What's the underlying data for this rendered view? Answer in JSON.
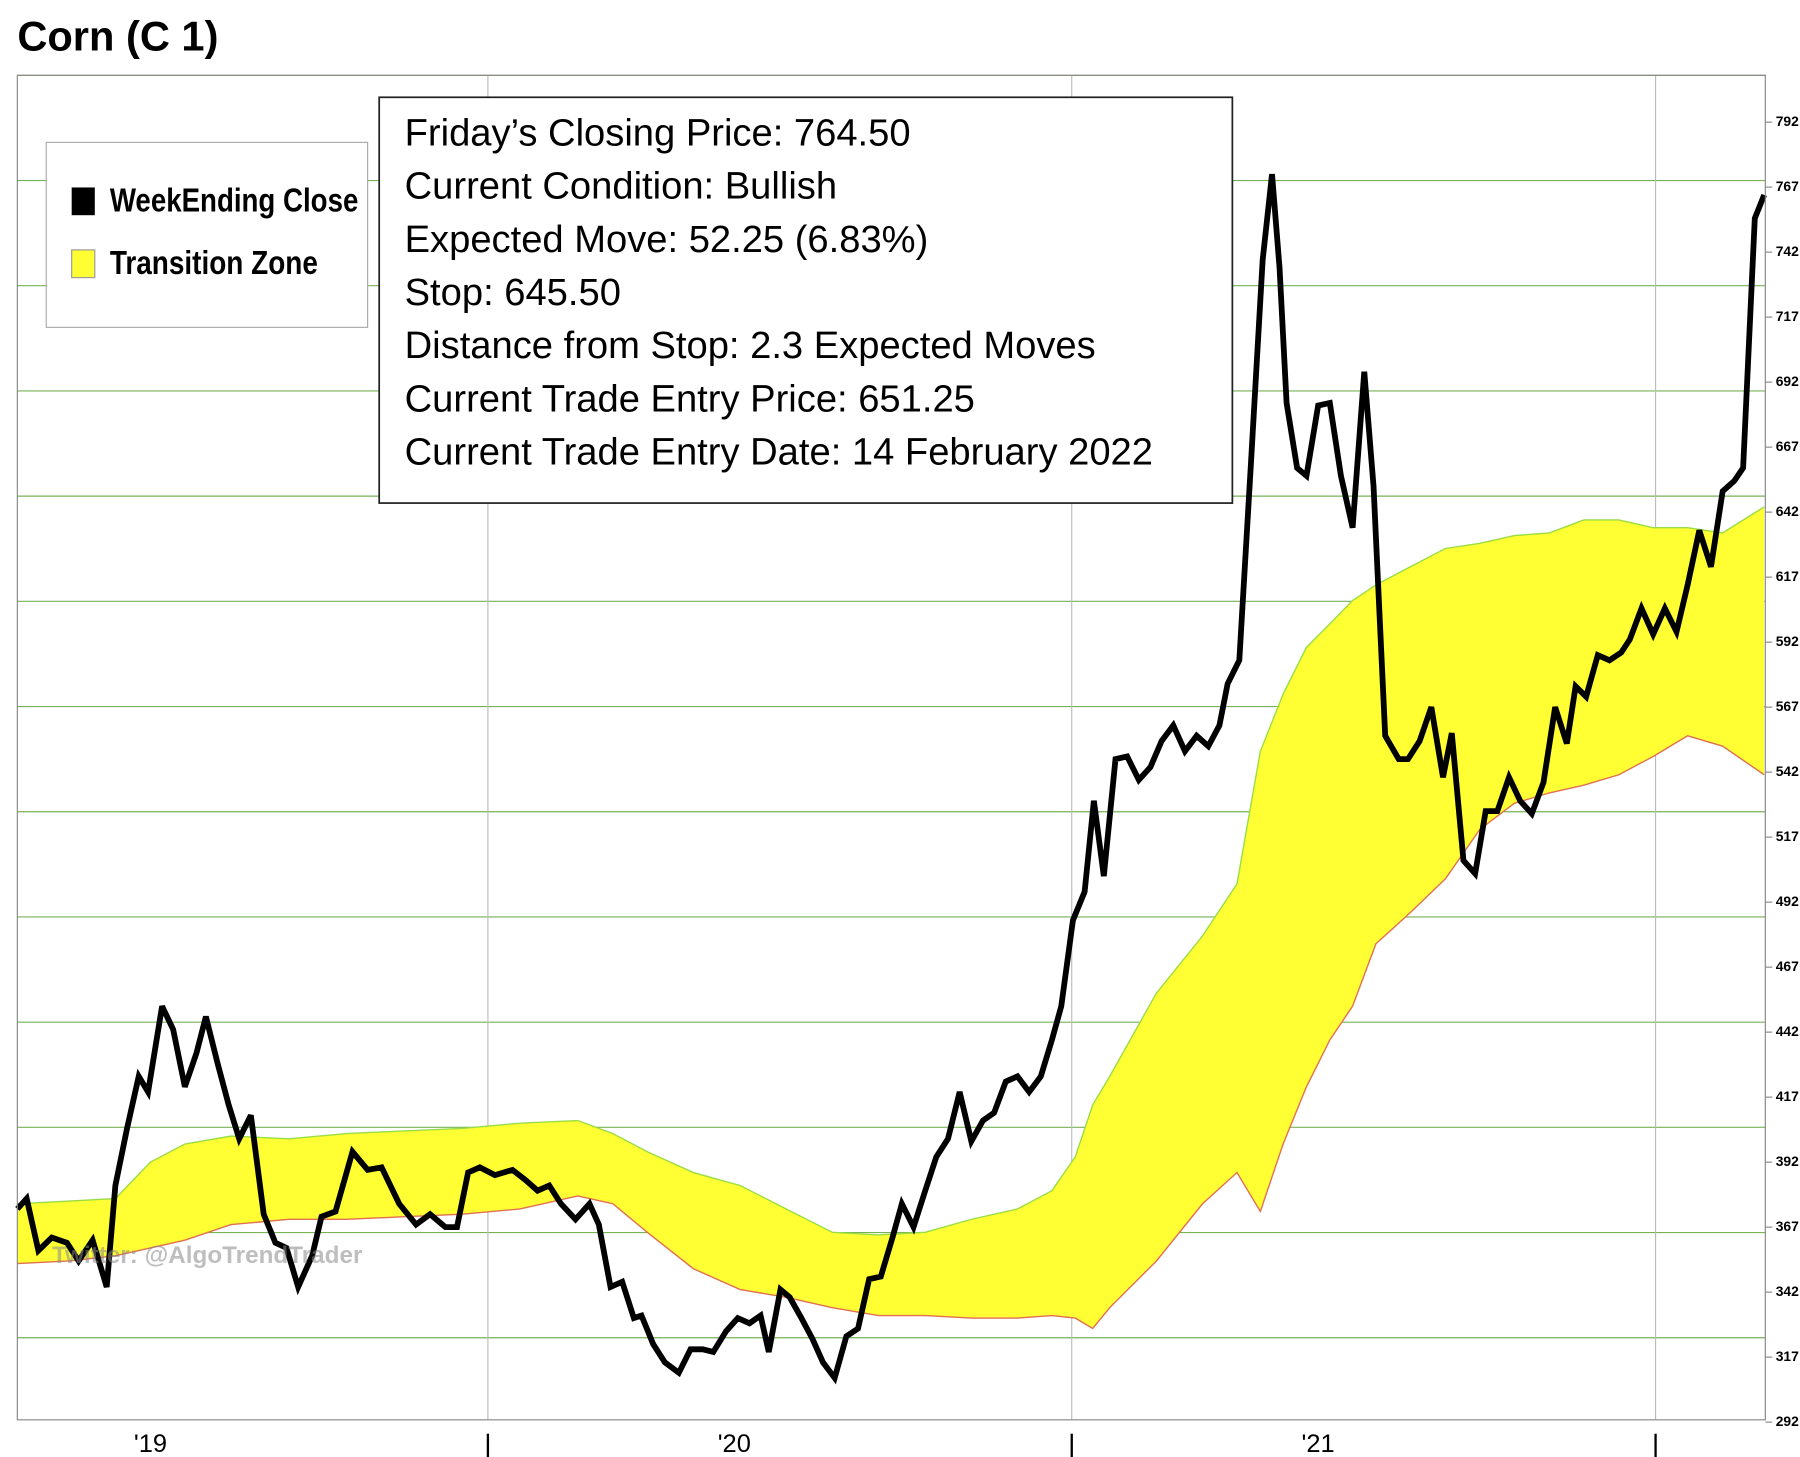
{
  "chart_data": {
    "type": "line",
    "title": "Corn (C 1)",
    "annotations": [
      "Friday’s Closing Price: 764.50",
      "Current Condition: Bullish",
      "Expected Move: 52.25 (6.83%)",
      "Stop: 645.50",
      "Distance from Stop: 2.3 Expected Moves",
      "Current Trade Entry Price: 651.25",
      "Current Trade Entry Date: 14 February 2022"
    ],
    "watermark": "Twitter: @AlgoTrendTrader",
    "legend": "upper left",
    "xlim": [
      2019.194,
      2022.186
    ],
    "xticks": [
      {
        "value": 2019.422,
        "label": "'19"
      },
      {
        "value": 2020.422,
        "label": "'20"
      },
      {
        "value": 2021.422,
        "label": "'21"
      }
    ],
    "xgrid": [
      2020,
      2021,
      2022
    ],
    "ylim": [
      292,
      810
    ],
    "yticks": [
      292,
      317,
      342,
      367,
      392,
      417,
      442,
      467,
      492,
      517,
      542,
      567,
      592,
      617,
      642,
      667,
      692,
      717,
      742,
      767,
      792
    ],
    "series": [
      {
        "name": "WeekEnding Close",
        "color": "#000000",
        "x": [
          2019.194,
          2019.21,
          2019.23,
          2019.253,
          2019.279,
          2019.299,
          2019.323,
          2019.347,
          2019.362,
          2019.382,
          2019.402,
          2019.418,
          2019.442,
          2019.461,
          2019.481,
          2019.501,
          2019.517,
          2019.537,
          2019.556,
          2019.574,
          2019.594,
          2019.616,
          2019.636,
          2019.655,
          2019.675,
          2019.699,
          2019.715,
          2019.739,
          2019.768,
          2019.794,
          2019.818,
          2019.848,
          2019.877,
          2019.901,
          2019.927,
          2019.947,
          2019.966,
          2019.986,
          2020.012,
          2020.042,
          2020.065,
          2020.085,
          2020.105,
          2020.125,
          2020.15,
          2020.174,
          2020.19,
          2020.21,
          2020.23,
          2020.25,
          2020.263,
          2020.283,
          2020.303,
          2020.327,
          2020.347,
          2020.368,
          2020.386,
          2020.408,
          2020.428,
          2020.448,
          2020.467,
          2020.481,
          2020.501,
          2020.517,
          2020.537,
          2020.556,
          2020.574,
          2020.594,
          2020.614,
          2020.634,
          2020.653,
          2020.673,
          2020.693,
          2020.709,
          2020.729,
          2020.749,
          2020.768,
          2020.788,
          2020.808,
          2020.828,
          2020.848,
          2020.867,
          2020.887,
          2020.907,
          2020.927,
          2020.947,
          2020.966,
          2020.982,
          2021.002,
          2021.022,
          2021.038,
          2021.055,
          2021.075,
          2021.095,
          2021.115,
          2021.135,
          2021.154,
          2021.174,
          2021.194,
          2021.214,
          2021.234,
          2021.253,
          2021.267,
          2021.287,
          2021.307,
          2021.327,
          2021.343,
          2021.356,
          2021.368,
          2021.386,
          2021.402,
          2021.422,
          2021.442,
          2021.461,
          2021.481,
          2021.501,
          2021.517,
          2021.537,
          2021.56,
          2021.576,
          2021.596,
          2021.616,
          2021.636,
          2021.651,
          2021.671,
          2021.691,
          2021.709,
          2021.729,
          2021.749,
          2021.768,
          2021.788,
          2021.808,
          2021.828,
          2021.848,
          2021.863,
          2021.881,
          2021.901,
          2021.921,
          2021.941,
          2021.956,
          2021.976,
          2021.996,
          2022.016,
          2022.036,
          2022.055,
          2022.075,
          2022.095,
          2022.115,
          2022.135,
          2022.15,
          2022.17,
          2022.186
        ],
        "values": [
          374,
          378,
          358,
          363,
          361,
          354,
          362,
          344,
          383,
          405,
          425,
          419,
          452,
          443,
          421,
          434,
          448,
          430,
          414,
          401,
          410,
          372,
          361,
          359,
          344,
          356,
          371,
          373,
          396,
          389,
          390,
          376,
          368,
          372,
          367,
          367,
          388,
          390,
          387,
          389,
          385,
          381,
          383,
          376,
          370,
          376,
          368,
          344,
          346,
          332,
          333,
          322,
          315,
          311,
          320,
          320,
          319,
          327,
          332,
          330,
          333,
          319,
          343,
          340,
          332,
          324,
          315,
          309,
          325,
          328,
          347,
          348,
          363,
          376,
          367,
          381,
          394,
          401,
          419,
          400,
          408,
          411,
          423,
          425,
          419,
          425,
          439,
          452,
          485,
          496,
          531,
          502,
          547,
          548,
          539,
          544,
          554,
          560,
          550,
          556,
          552,
          560,
          576,
          585,
          661,
          739,
          772,
          736,
          684,
          659,
          656,
          683,
          684,
          656,
          636,
          696,
          652,
          556,
          547,
          547,
          554,
          567,
          540,
          557,
          508,
          503,
          527,
          527,
          540,
          531,
          526,
          538,
          567,
          553,
          575,
          571,
          587,
          585,
          588,
          593,
          605,
          595,
          605,
          596,
          614,
          635,
          621,
          650,
          654,
          659,
          755,
          764
        ]
      }
    ],
    "bands": [
      {
        "name": "Transition Zone",
        "color": "#ffff33",
        "upper_color": "#99dd44",
        "lower_color": "#e07050",
        "x": [
          2019.194,
          2019.283,
          2019.362,
          2019.422,
          2019.481,
          2019.56,
          2019.659,
          2019.758,
          2019.857,
          2019.956,
          2020.055,
          2020.154,
          2020.214,
          2020.273,
          2020.352,
          2020.432,
          2020.511,
          2020.59,
          2020.669,
          2020.749,
          2020.828,
          2020.907,
          2020.966,
          2021.006,
          2021.036,
          2021.065,
          2021.145,
          2021.224,
          2021.283,
          2021.323,
          2021.362,
          2021.402,
          2021.442,
          2021.481,
          2021.521,
          2021.58,
          2021.64,
          2021.699,
          2021.758,
          2021.818,
          2021.877,
          2021.937,
          2021.996,
          2022.055,
          2022.115,
          2022.186
        ],
        "upper": [
          376,
          377,
          378,
          392,
          399,
          402,
          401,
          403,
          404,
          405,
          407,
          408,
          403,
          396,
          388,
          383,
          374,
          365,
          364,
          365,
          370,
          374,
          381,
          394,
          414,
          425,
          457,
          479,
          499,
          550,
          572,
          590,
          599,
          608,
          614,
          621,
          628,
          630,
          633,
          634,
          639,
          639,
          636,
          636,
          634,
          644
        ],
        "lower": [
          353,
          354,
          356,
          359,
          362,
          368,
          370,
          370,
          371,
          372,
          374,
          379,
          376,
          365,
          351,
          343,
          340,
          336,
          333,
          333,
          332,
          332,
          333,
          332,
          328,
          336,
          354,
          376,
          388,
          373,
          399,
          421,
          439,
          452,
          476,
          488,
          501,
          520,
          530,
          534,
          537,
          541,
          548,
          556,
          552,
          541
        ]
      }
    ]
  }
}
